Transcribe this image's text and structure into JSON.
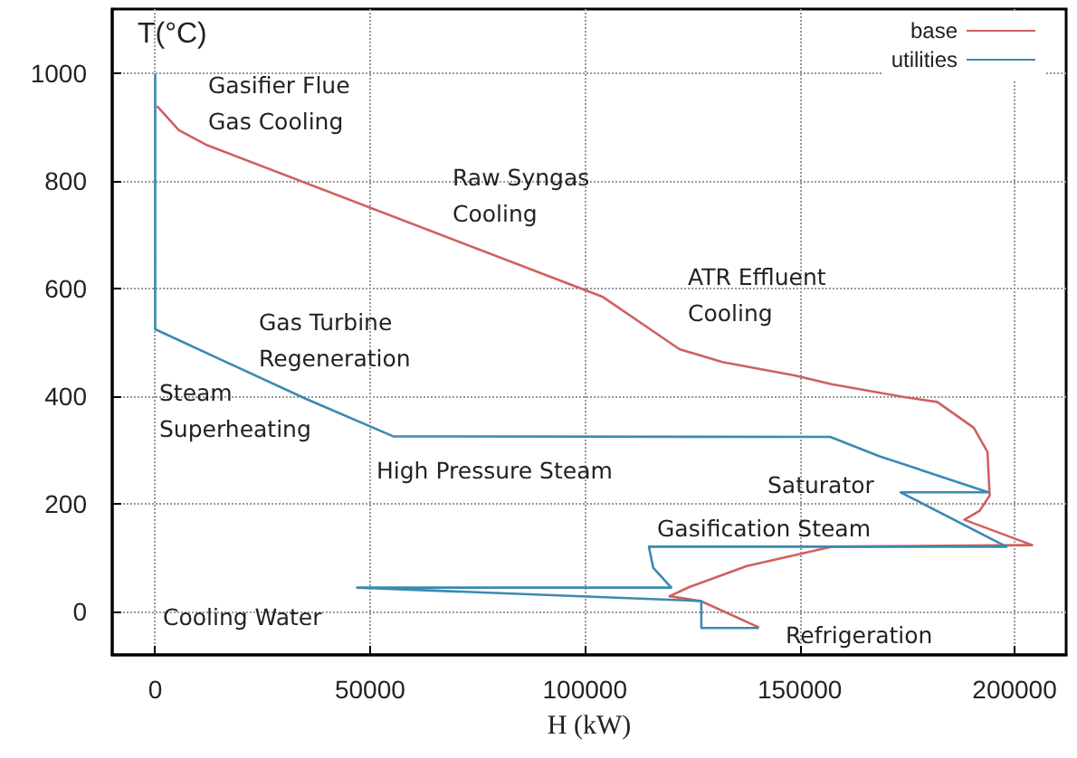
{
  "chart_data": {
    "type": "line",
    "xlabel": "H (kW)",
    "ylabel": "T(°C)",
    "xlim": [
      -10000,
      212000
    ],
    "xticks": [
      0,
      50000,
      100000,
      150000,
      200000
    ],
    "ylim": [
      -80,
      1120
    ],
    "yticks": [
      0,
      200,
      400,
      600,
      800,
      1000
    ],
    "grid": true,
    "legend": "top right",
    "marker": "none",
    "line_style": "solid",
    "series": [
      {
        "name": "base",
        "color": "#d0605e",
        "x": [
          400,
          5500,
          11800,
          104200,
          115200,
          122000,
          132000,
          149000,
          157400,
          174300,
          182000,
          190500,
          193700,
          194200,
          191900,
          188300,
          204100,
          157400,
          137700,
          124300,
          119700,
          127000,
          140500
        ],
        "values": [
          940,
          895,
          868,
          585,
          525,
          488,
          464,
          439,
          423,
          399,
          390,
          342,
          297,
          216,
          188,
          171,
          124,
          121,
          85,
          46,
          29,
          20,
          -29
        ]
      },
      {
        "name": "utilities",
        "color": "#3a8ab0",
        "x": [
          0,
          0,
          35000,
          55400,
          157100,
          168600,
          193900,
          173500,
          198100,
          114900,
          115900,
          120100,
          47000,
          127100,
          127100,
          140500
        ],
        "values": [
          1000,
          525,
          396,
          326,
          325,
          289,
          222,
          222,
          121,
          121,
          82,
          45,
          45,
          20,
          -30,
          -30
        ]
      }
    ],
    "annotations": [
      "Gasifier Flue\nGas Cooling",
      "Raw Syngas\nCooling",
      "ATR Effluent\nCooling",
      "Gas Turbine\nRegeneration",
      "Steam\nSuperheating",
      "High Pressure Steam",
      "Saturator",
      "Gasification Steam",
      "Cooling Water",
      "Refrigeration"
    ]
  }
}
